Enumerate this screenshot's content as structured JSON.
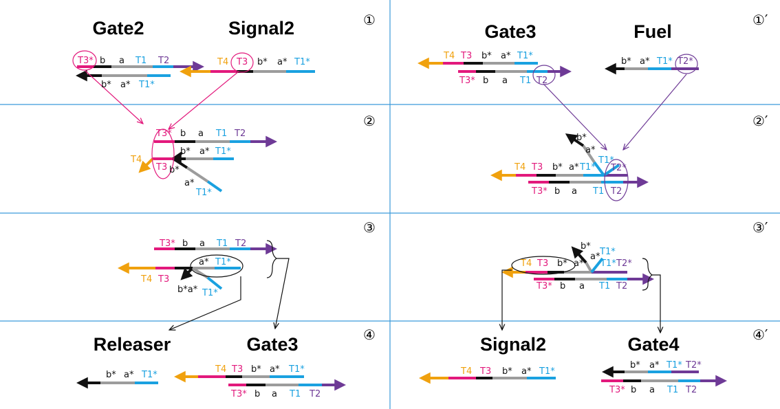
{
  "colors": {
    "magenta": "#e2197c",
    "black": "#111111",
    "gray": "#9c9c9c",
    "cyan": "#1aa1e0",
    "purple": "#6e3a96",
    "orange": "#f0a10e",
    "divider": "#3a9ad9",
    "circle_magenta": "#e2197c",
    "circle_purple": "#6e3a96"
  },
  "titles": {
    "gate2": "Gate2",
    "signal2_top": "Signal2",
    "gate3_top": "Gate3",
    "fuel": "Fuel",
    "releaser": "Releaser",
    "gate3_bottom": "Gate3",
    "signal2_bottom": "Signal2",
    "gate4": "Gate4"
  },
  "steps": {
    "s1": "①",
    "s2": "②",
    "s3": "③",
    "s4": "④",
    "s1p": "①′",
    "s2p": "②′",
    "s3p": "③′",
    "s4p": "④′"
  },
  "domains": {
    "T1": "T1",
    "T1s": "T1*",
    "T2": "T2",
    "T2s": "T2*",
    "T3": "T3",
    "T3s": "T3*",
    "T4": "T4",
    "a": "a",
    "as": "a*",
    "b": "b",
    "bs": "b*",
    "bsas": "b*a*"
  }
}
